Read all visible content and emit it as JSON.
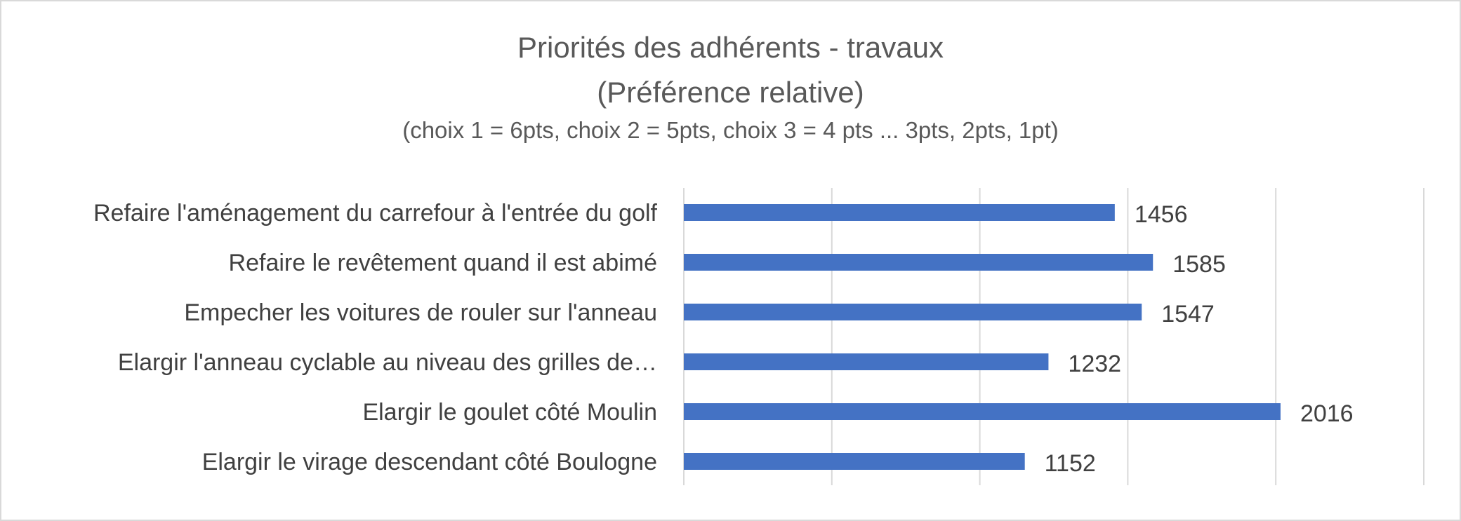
{
  "chart_data": {
    "type": "bar",
    "orientation": "horizontal",
    "title": "Priorités des adhérents - travaux",
    "title_line2": "(Préférence relative)",
    "subtitle": "(choix 1 = 6pts, choix 2 = 5pts, choix 3 = 4 pts ... 3pts, 2pts, 1pt)",
    "categories": [
      "Refaire l'aménagement du carrefour à l'entrée du golf",
      "Refaire le revêtement quand il est abimé",
      "Empecher les voitures de rouler sur l'anneau",
      "Elargir l'anneau cyclable au niveau des grilles de…",
      "Elargir le goulet côté Moulin",
      "Elargir le virage descendant côté Boulogne"
    ],
    "values": [
      1456,
      1585,
      1547,
      1232,
      2016,
      1152
    ],
    "data_labels": [
      "1456",
      "1585",
      "1547",
      "1232",
      "2016",
      "1152"
    ],
    "xlim": [
      0,
      2500
    ],
    "gridlines": "vertical",
    "legend": "none",
    "bar_color": "#4472c4",
    "grid_color": "#d9d9d9",
    "text_color": "#404040"
  }
}
